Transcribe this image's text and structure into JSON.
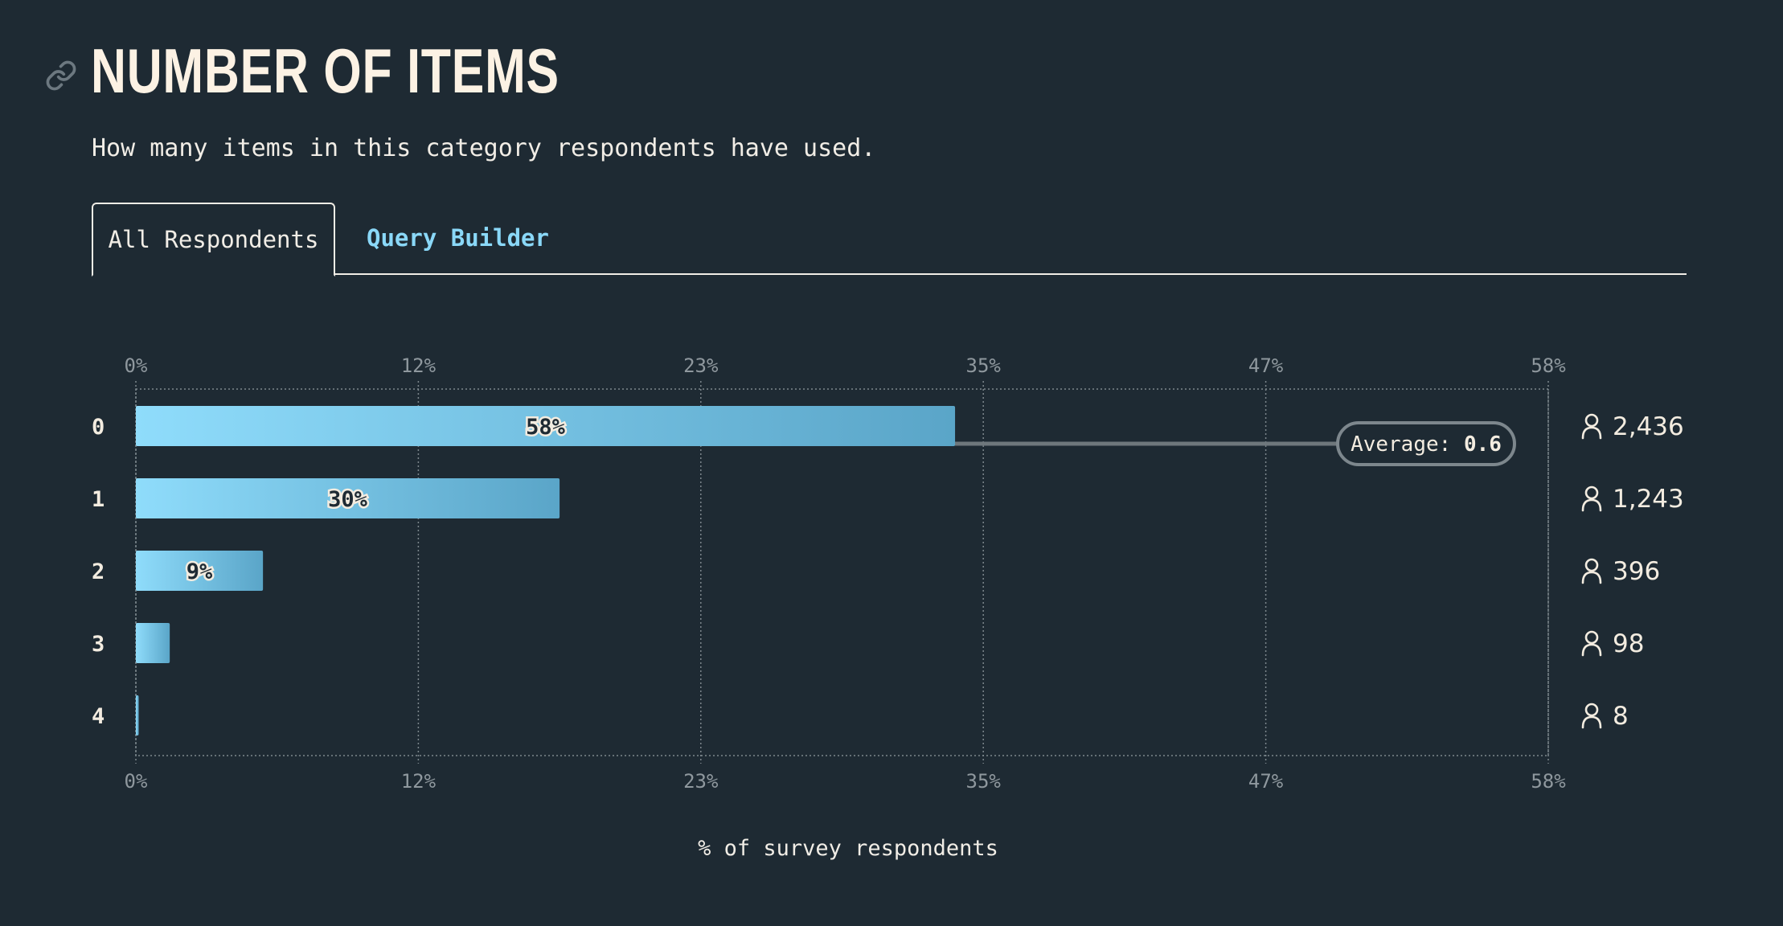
{
  "header": {
    "title": "Number of Items",
    "subtitle": "How many items in this category respondents have used.",
    "link_icon": "link-icon"
  },
  "tabs": [
    {
      "label": "All Respondents",
      "active": true
    },
    {
      "label": "Query Builder",
      "active": false
    }
  ],
  "colors": {
    "background": "#1e2a33",
    "bar_start": "#8fdcfb",
    "bar_end": "#5aa5c8",
    "text": "#f3ece0",
    "accent": "#8ad8f8",
    "grid": "#8f989e"
  },
  "chart_data": {
    "type": "bar",
    "orientation": "horizontal",
    "categories": [
      "0",
      "1",
      "2",
      "3",
      "4"
    ],
    "values": [
      58,
      30,
      9,
      2.4,
      0.2
    ],
    "value_labels": [
      "58%",
      "30%",
      "9%",
      "",
      ""
    ],
    "counts": [
      "2,436",
      "1,243",
      "396",
      "98",
      "8"
    ],
    "count_icon": "person-icon",
    "xlim": [
      0,
      100
    ],
    "x_ticks": [
      "0%",
      "12%",
      "23%",
      "35%",
      "47%",
      "58%"
    ],
    "xlabel": "% of survey respondents",
    "grid": true,
    "average": {
      "label": "Average:",
      "value": "0.6"
    }
  }
}
